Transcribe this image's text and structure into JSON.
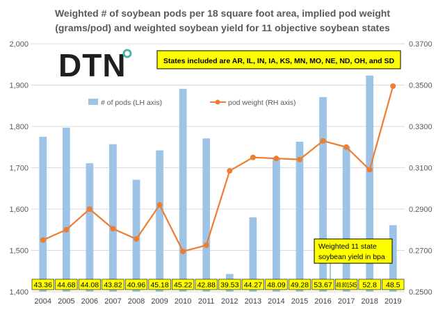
{
  "chart_data": {
    "type": "bar",
    "title_lines": [
      "Weighted # of soybean pods per 18 square foot area, implied pod weight",
      "(grams/pod) and weighted soybean yield for 11 objective soybean states"
    ],
    "categories": [
      "2004",
      "2005",
      "2006",
      "2007",
      "2008",
      "2009",
      "2010",
      "2011",
      "2012",
      "2013",
      "2014",
      "2015",
      "2016",
      "2017",
      "2018",
      "2019"
    ],
    "left_axis": {
      "min": 1400,
      "max": 2000,
      "ticks": [
        "1,400",
        "1,500",
        "1,600",
        "1,700",
        "1,800",
        "1,900",
        "2,000"
      ]
    },
    "right_axis": {
      "min": 0.25,
      "max": 0.37,
      "ticks": [
        "0.2500",
        "0.2700",
        "0.2900",
        "0.3100",
        "0.3300",
        "0.3500",
        "0.3700"
      ]
    },
    "series": [
      {
        "name": "# of pods (LH axis)",
        "type": "bar",
        "axis": "left",
        "color": "#9DC3E6",
        "values": [
          1775,
          1797,
          1711,
          1757,
          1671,
          1742,
          1891,
          1771,
          1443,
          1580,
          1722,
          1763,
          1871,
          1752,
          1923,
          1561
        ]
      },
      {
        "name": "pod weight (RH axis)",
        "type": "line",
        "axis": "right",
        "color": "#ED7D31",
        "values": [
          0.275,
          0.28,
          0.29,
          0.2805,
          0.2755,
          0.292,
          0.2695,
          0.2725,
          0.3085,
          0.315,
          0.3145,
          0.314,
          0.323,
          0.32,
          0.309,
          0.3495
        ]
      }
    ],
    "yield_labels": [
      "43.36",
      "44.68",
      "44.08",
      "43.82",
      "40.96",
      "45.18",
      "45.22",
      "42.88",
      "39.53",
      "44.27",
      "48.09",
      "49.28",
      "53.67",
      "49.801545",
      "52.8",
      "48.5"
    ],
    "callout": {
      "line1": "Weighted 11 state",
      "line2": "soybean yield in bpa"
    },
    "states_box": "States included  are AR, IL, IN, IA, KS, MN, MO, NE, ND, OH, and SD",
    "logo_text": "DTN",
    "grid": true,
    "legend": "top-center"
  },
  "colors": {
    "bar": "#9DC3E6",
    "line": "#ED7D31",
    "label_box": "#FFFF00",
    "grid": "#D9D9D9",
    "logo": "#1F1F1F",
    "logo_accent": "#4BB6A7"
  }
}
